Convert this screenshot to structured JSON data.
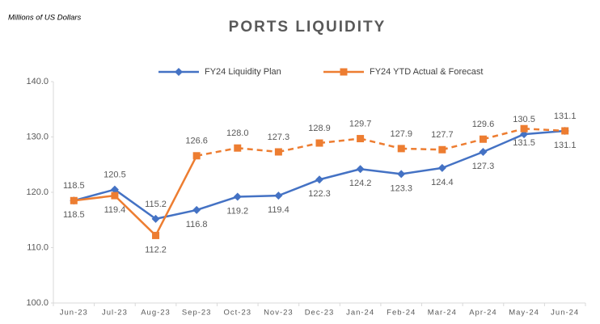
{
  "chart_data": {
    "type": "line",
    "title": "PORTS LIQUIDITY",
    "subtitle": "Millions of US Dollars",
    "categories": [
      "Jun-23",
      "Jul-23",
      "Aug-23",
      "Sep-23",
      "Oct-23",
      "Nov-23",
      "Dec-23",
      "Jan-24",
      "Feb-24",
      "Mar-24",
      "Apr-24",
      "May-24",
      "Jun-24"
    ],
    "series": [
      {
        "name": "FY24 Liquidity Plan",
        "color": "#4472c4",
        "marker": "diamond",
        "values": [
          118.5,
          120.5,
          115.2,
          116.8,
          119.2,
          119.4,
          122.3,
          124.2,
          123.3,
          124.4,
          127.3,
          130.5,
          131.1
        ],
        "value_labels": [
          "118.5",
          "120.5",
          "115.2",
          "116.8",
          "119.2",
          "119.4",
          "122.3",
          "124.2",
          "123.3",
          "124.4",
          "127.3",
          "130.5",
          "131.1"
        ]
      },
      {
        "name": "FY24 YTD Actual & Forecast",
        "color": "#ed7d31",
        "marker": "square",
        "dashed_from": "Sep-23",
        "values": [
          118.5,
          119.4,
          112.2,
          126.6,
          128,
          127.3,
          128.9,
          129.7,
          127.9,
          127.7,
          129.6,
          131.5,
          131.1
        ],
        "value_labels": [
          "118.5",
          "119.4",
          "112.2",
          "126.6",
          "128.0",
          "127.3",
          "128.9",
          "129.7",
          "127.9",
          "127.7",
          "129.6",
          "131.5",
          "131.1"
        ]
      }
    ],
    "ylim": [
      100,
      140
    ],
    "yticks": [
      {
        "value": 100,
        "label": "100.0"
      },
      {
        "value": 110,
        "label": "110.0"
      },
      {
        "value": 120,
        "label": "120.0"
      },
      {
        "value": 130,
        "label": "130.0"
      },
      {
        "value": 140,
        "label": "140.0"
      }
    ],
    "grid": false,
    "legend": "top"
  }
}
